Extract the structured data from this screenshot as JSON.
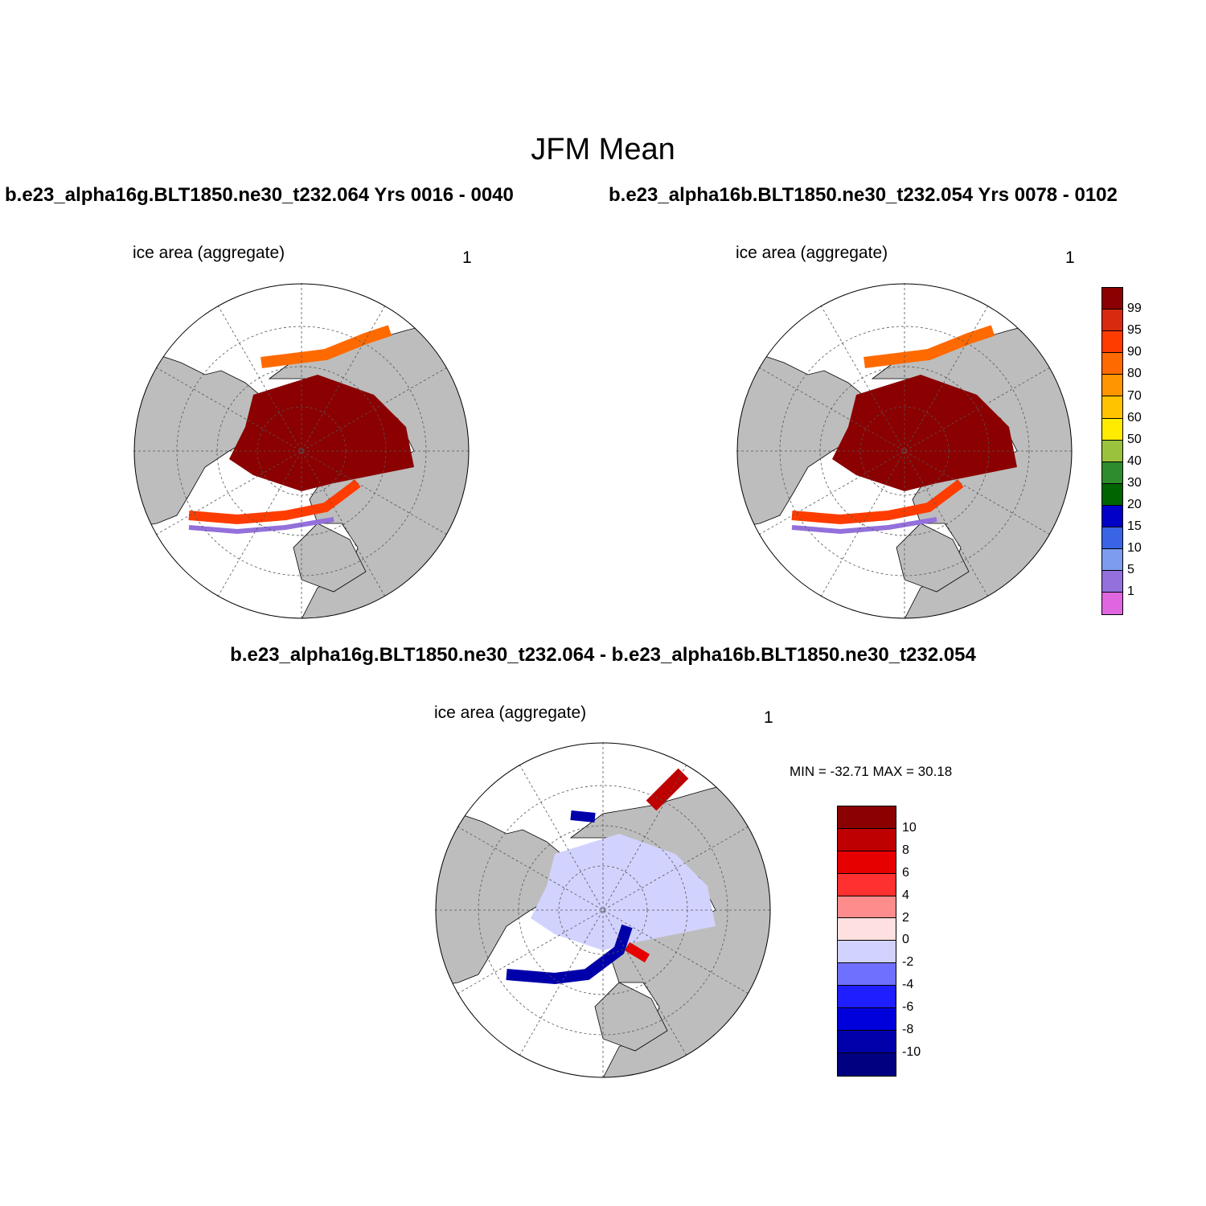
{
  "title": "JFM Mean",
  "panels": [
    {
      "case": "b.e23_alpha16g.BLT1850.ne30_t232.064  Yrs 0016 - 0040",
      "variable": "ice area  (aggregate)",
      "units": "1"
    },
    {
      "case": "b.e23_alpha16b.BLT1850.ne30_t232.054  Yrs 0078 - 0102",
      "variable": "ice area  (aggregate)",
      "units": "1"
    }
  ],
  "difference": {
    "title": "b.e23_alpha16g.BLT1850.ne30_t232.064 - b.e23_alpha16b.BLT1850.ne30_t232.054",
    "variable": "ice area  (aggregate)",
    "units": "1",
    "minmax": "MIN = -32.71 MAX =  30.18"
  },
  "colorbar_main": {
    "labels": [
      "99",
      "95",
      "90",
      "80",
      "70",
      "60",
      "50",
      "40",
      "30",
      "20",
      "15",
      "10",
      "5",
      "1"
    ],
    "colors": [
      "#8b0000",
      "#d72a0e",
      "#ff3c00",
      "#ff6a00",
      "#ff9500",
      "#ffc300",
      "#ffeb00",
      "#9ac23c",
      "#2e8b2e",
      "#006400",
      "#0000c8",
      "#3a64e6",
      "#7d9cf0",
      "#9370db",
      "#e066e0"
    ]
  },
  "colorbar_diff": {
    "labels": [
      "10",
      "8",
      "6",
      "4",
      "2",
      "0",
      "-2",
      "-4",
      "-6",
      "-8",
      "-10"
    ],
    "colors": [
      "#8b0000",
      "#bf0000",
      "#e60000",
      "#ff3030",
      "#ff8c8c",
      "#ffe0e0",
      "#d2d2ff",
      "#7070ff",
      "#1e1eff",
      "#0000dc",
      "#0000aa",
      "#000080"
    ]
  }
}
